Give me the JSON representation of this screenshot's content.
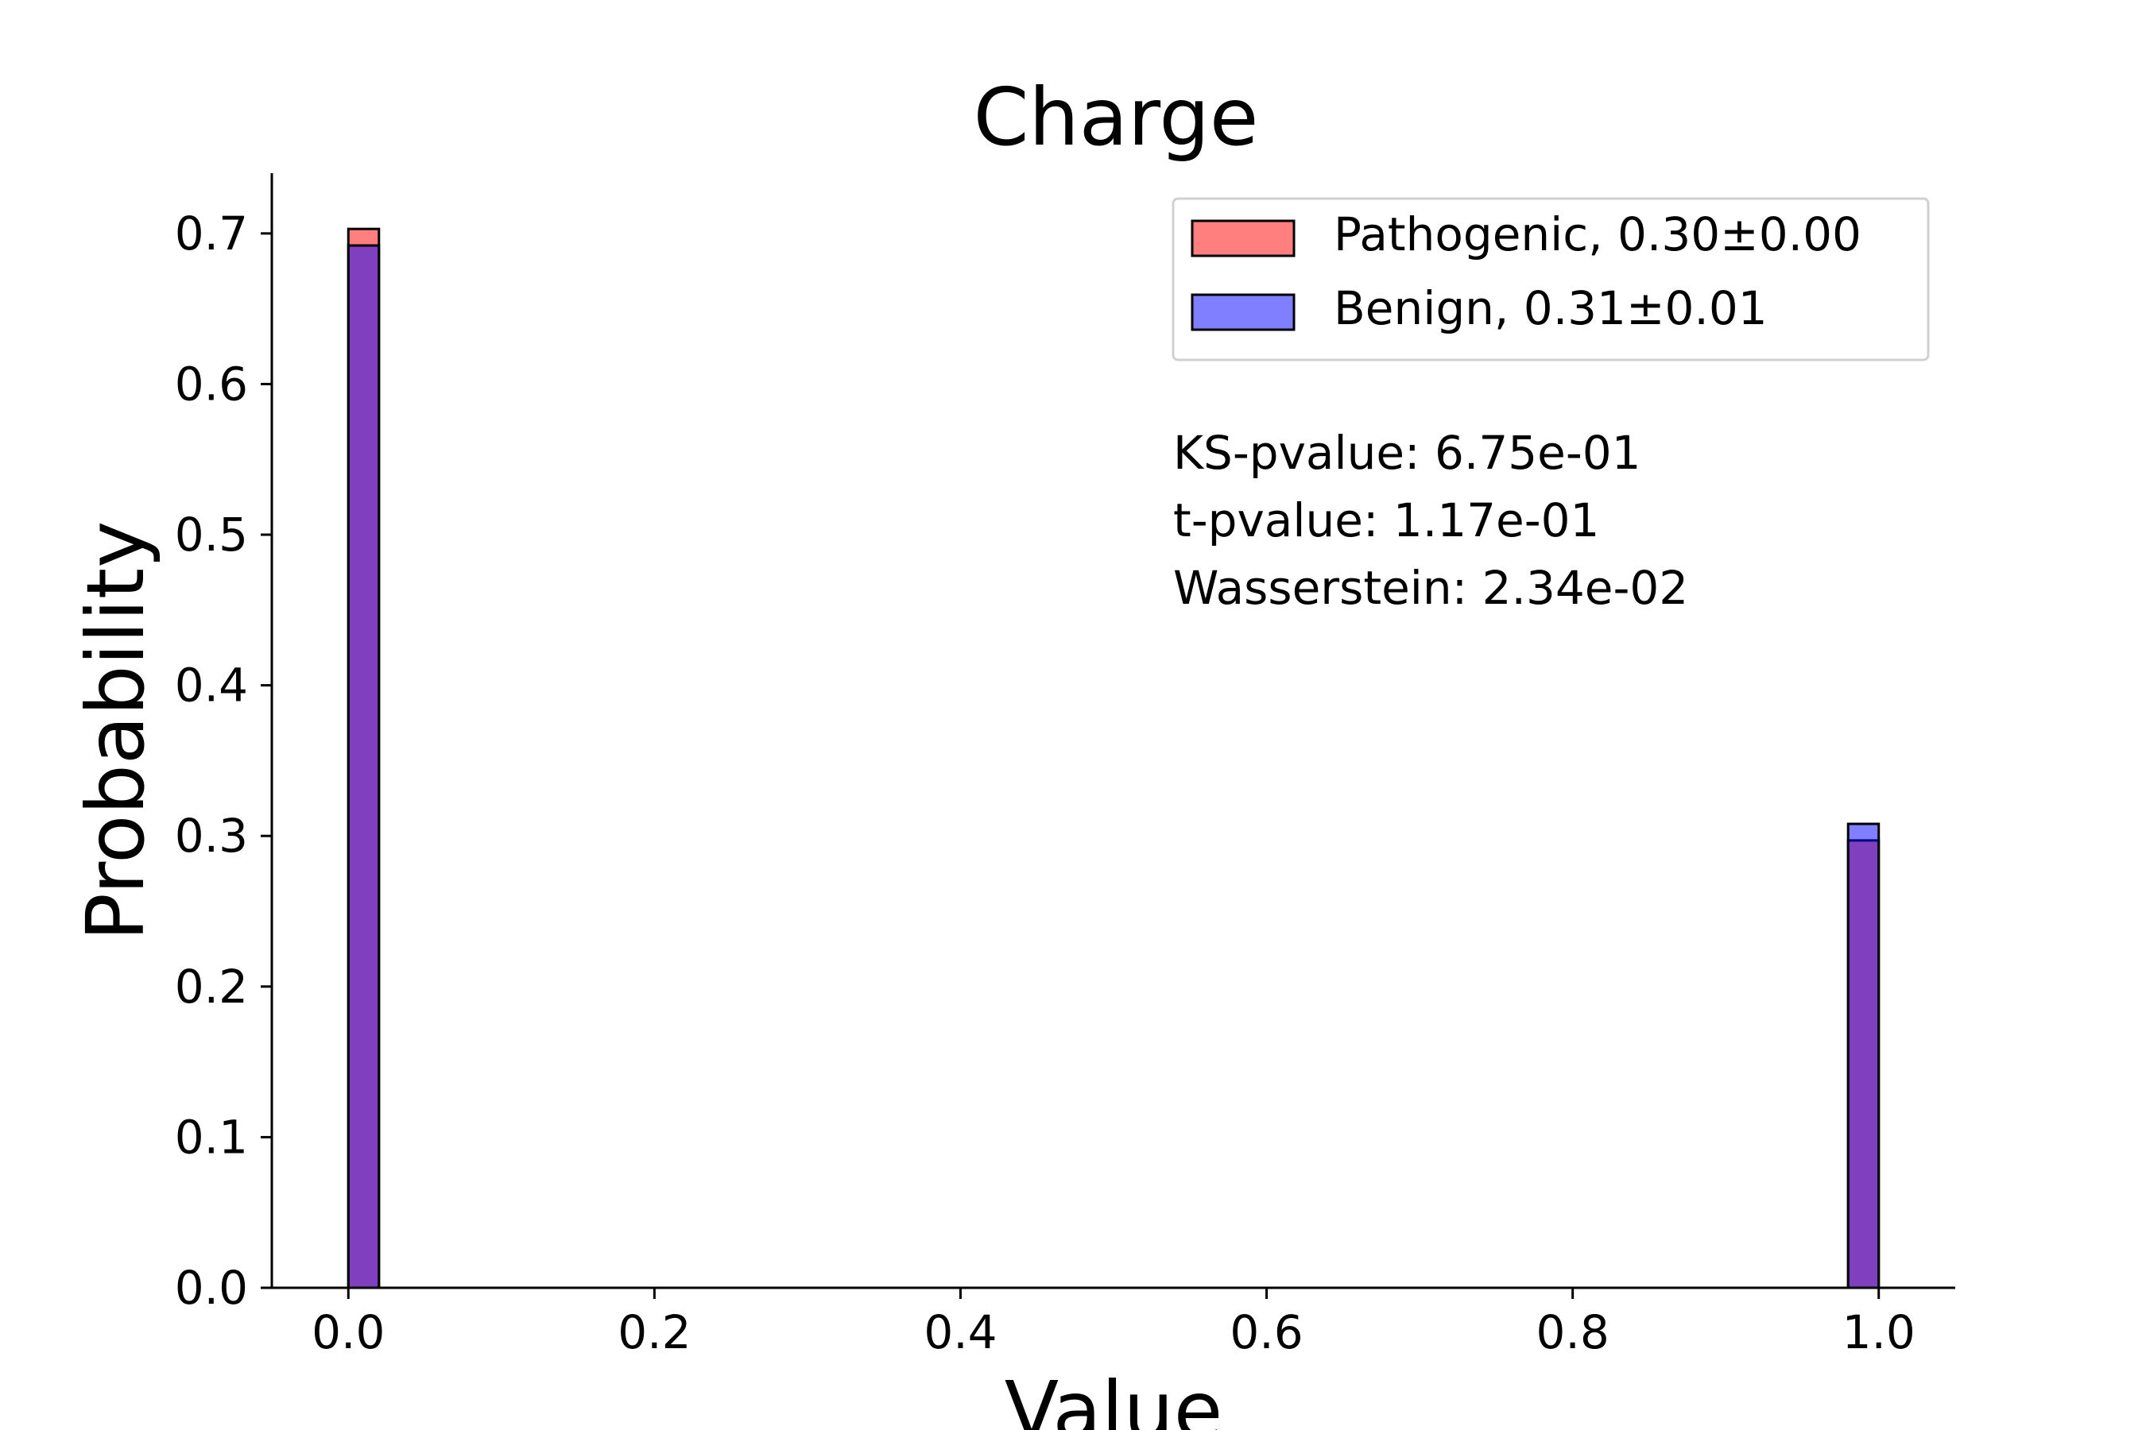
{
  "chart_data": {
    "type": "bar",
    "subtype": "overlaid-histogram",
    "title": "Charge",
    "xlabel": "Value",
    "ylabel": "Probability",
    "xlim": [
      -0.05,
      1.05
    ],
    "ylim": [
      0,
      0.74
    ],
    "xticks": [
      "0.0",
      "0.2",
      "0.4",
      "0.6",
      "0.8",
      "1.0"
    ],
    "yticks": [
      "0.0",
      "0.1",
      "0.2",
      "0.3",
      "0.4",
      "0.5",
      "0.6",
      "0.7"
    ],
    "grid": false,
    "legend_position": "top-right",
    "series": [
      {
        "name": "Pathogenic, 0.30±0.00",
        "color": "#ff0000",
        "opacity": 0.5,
        "bins": [
          {
            "x0": 0.0,
            "x1": 0.02,
            "value": 0.703
          },
          {
            "x0": 0.98,
            "x1": 1.0,
            "value": 0.297
          }
        ]
      },
      {
        "name": "Benign, 0.31±0.01",
        "color": "#0000ff",
        "opacity": 0.5,
        "bins": [
          {
            "x0": 0.0,
            "x1": 0.02,
            "value": 0.692
          },
          {
            "x0": 0.98,
            "x1": 1.0,
            "value": 0.308
          }
        ]
      }
    ],
    "annotations": [
      "KS-pvalue: 6.75e-01",
      "t-pvalue: 1.17e-01",
      "Wasserstein: 2.34e-02"
    ]
  }
}
